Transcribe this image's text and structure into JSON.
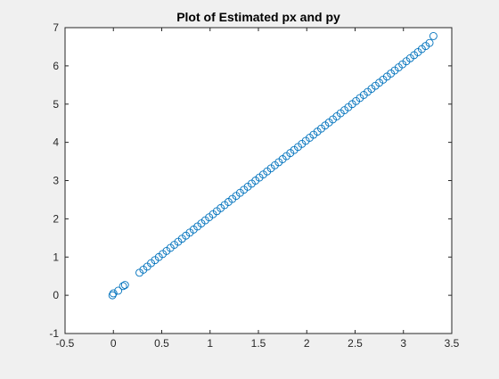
{
  "chart_data": {
    "type": "scatter",
    "title": "Plot of Estimated px and py",
    "xlabel": "",
    "ylabel": "",
    "xlim": [
      -0.5,
      3.5
    ],
    "ylim": [
      -1,
      7
    ],
    "xticks": [
      -0.5,
      0,
      0.5,
      1,
      1.5,
      2,
      2.5,
      3,
      3.5
    ],
    "yticks": [
      -1,
      0,
      1,
      2,
      3,
      4,
      5,
      6,
      7
    ],
    "xtick_labels": [
      "-0.5",
      "0",
      "0.5",
      "1",
      "1.5",
      "2",
      "2.5",
      "3",
      "3.5"
    ],
    "ytick_labels": [
      "-1",
      "0",
      "1",
      "2",
      "3",
      "4",
      "5",
      "6",
      "7"
    ],
    "grid": false,
    "legend": "none",
    "marker": "circle",
    "marker_color": "#0072bd",
    "series": [
      {
        "x": [
          -0.01,
          0.0,
          0.05,
          0.1,
          0.12,
          0.27,
          0.31,
          0.35,
          0.39,
          0.43,
          0.47,
          0.51,
          0.55,
          0.59,
          0.63,
          0.67,
          0.71,
          0.75,
          0.79,
          0.83,
          0.87,
          0.91,
          0.95,
          0.99,
          1.03,
          1.07,
          1.11,
          1.15,
          1.19,
          1.23,
          1.27,
          1.31,
          1.35,
          1.39,
          1.43,
          1.47,
          1.51,
          1.55,
          1.59,
          1.63,
          1.67,
          1.71,
          1.75,
          1.79,
          1.83,
          1.87,
          1.91,
          1.95,
          1.99,
          2.03,
          2.07,
          2.11,
          2.15,
          2.19,
          2.23,
          2.27,
          2.31,
          2.35,
          2.39,
          2.43,
          2.47,
          2.51,
          2.55,
          2.59,
          2.63,
          2.67,
          2.71,
          2.75,
          2.79,
          2.83,
          2.87,
          2.91,
          2.95,
          2.99,
          3.03,
          3.07,
          3.11,
          3.15,
          3.19,
          3.23,
          3.27,
          3.31
        ],
        "y": [
          0.0,
          0.05,
          0.12,
          0.24,
          0.27,
          0.59,
          0.67,
          0.75,
          0.84,
          0.92,
          1.0,
          1.08,
          1.16,
          1.24,
          1.32,
          1.4,
          1.48,
          1.56,
          1.64,
          1.72,
          1.8,
          1.88,
          1.96,
          2.04,
          2.12,
          2.2,
          2.28,
          2.36,
          2.44,
          2.52,
          2.6,
          2.68,
          2.76,
          2.84,
          2.92,
          3.0,
          3.08,
          3.16,
          3.24,
          3.32,
          3.4,
          3.48,
          3.56,
          3.64,
          3.72,
          3.8,
          3.88,
          3.96,
          4.04,
          4.12,
          4.2,
          4.28,
          4.36,
          4.44,
          4.52,
          4.6,
          4.68,
          4.76,
          4.84,
          4.92,
          5.0,
          5.08,
          5.16,
          5.24,
          5.32,
          5.4,
          5.48,
          5.56,
          5.64,
          5.72,
          5.8,
          5.88,
          5.96,
          6.04,
          6.12,
          6.2,
          6.28,
          6.36,
          6.44,
          6.52,
          6.6,
          6.78
        ]
      }
    ]
  }
}
